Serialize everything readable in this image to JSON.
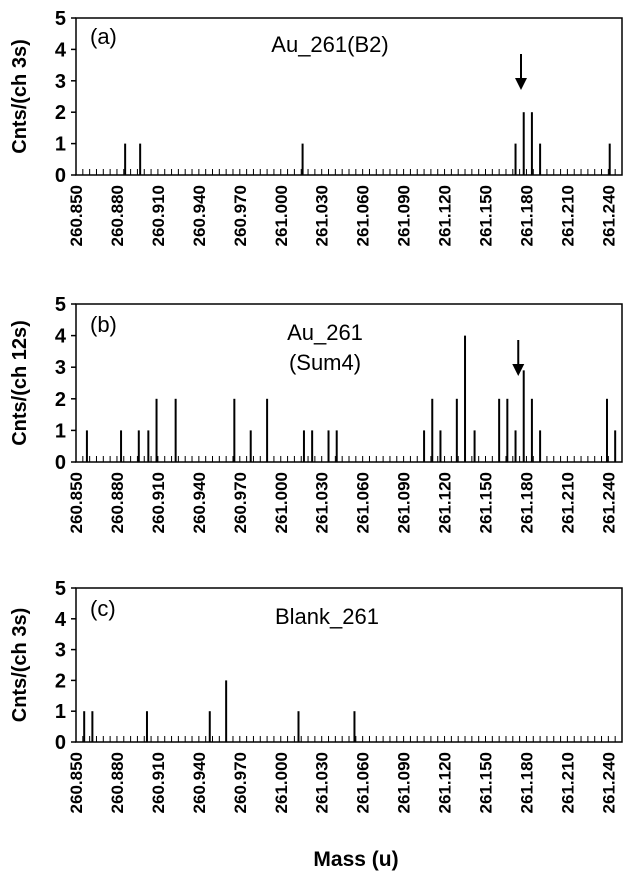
{
  "xlabel": "Mass (u)",
  "chart_data": [
    {
      "type": "bar",
      "panel_label": "(a)",
      "annotation": [
        "Au_261(B2)"
      ],
      "ylabel": "Cnts/(ch 3s)",
      "xlim": [
        260.85,
        261.25
      ],
      "ylim": [
        0,
        5
      ],
      "xticks": [
        "260.850",
        "260.880",
        "260.910",
        "260.940",
        "260.970",
        "261.000",
        "261.030",
        "261.060",
        "261.090",
        "261.120",
        "261.150",
        "261.180",
        "261.210",
        "261.240"
      ],
      "yticks": [
        "0",
        "1",
        "2",
        "3",
        "4",
        "5"
      ],
      "arrow_at": 261.176,
      "x": [
        260.886,
        260.897,
        261.016,
        261.172,
        261.178,
        261.184,
        261.19,
        261.241
      ],
      "values": [
        1,
        1,
        1,
        1,
        2,
        2,
        1,
        1
      ]
    },
    {
      "type": "bar",
      "panel_label": "(b)",
      "annotation": [
        "Au_261",
        "(Sum4)"
      ],
      "ylabel": "Cnts/(ch 12s)",
      "xlim": [
        260.85,
        261.25
      ],
      "ylim": [
        0,
        5
      ],
      "xticks": [
        "260.850",
        "260.880",
        "260.910",
        "260.940",
        "260.970",
        "261.000",
        "261.030",
        "261.060",
        "261.090",
        "261.120",
        "261.150",
        "261.180",
        "261.210",
        "261.240"
      ],
      "yticks": [
        "0",
        "1",
        "2",
        "3",
        "4",
        "5"
      ],
      "arrow_at": 261.174,
      "x": [
        260.858,
        260.883,
        260.896,
        260.903,
        260.909,
        260.923,
        260.966,
        260.978,
        260.99,
        261.017,
        261.023,
        261.035,
        261.041,
        261.105,
        261.111,
        261.117,
        261.129,
        261.135,
        261.142,
        261.16,
        261.166,
        261.172,
        261.178,
        261.184,
        261.19,
        261.239,
        261.245
      ],
      "values": [
        1,
        1,
        1,
        1,
        2,
        2,
        2,
        1,
        2,
        1,
        1,
        1,
        1,
        1,
        2,
        1,
        2,
        4,
        1,
        2,
        2,
        1,
        2.9,
        2,
        1,
        2,
        1
      ]
    },
    {
      "type": "bar",
      "panel_label": "(c)",
      "annotation": [
        "Blank_261"
      ],
      "ylabel": "Cnts/(ch 3s)",
      "xlim": [
        260.85,
        261.25
      ],
      "ylim": [
        0,
        5
      ],
      "xticks": [
        "260.850",
        "260.880",
        "260.910",
        "260.940",
        "260.970",
        "261.000",
        "261.030",
        "261.060",
        "261.090",
        "261.120",
        "261.150",
        "261.180",
        "261.210",
        "261.240"
      ],
      "yticks": [
        "0",
        "1",
        "2",
        "3",
        "4",
        "5"
      ],
      "x": [
        260.856,
        260.862,
        260.902,
        260.948,
        260.96,
        261.013,
        261.054
      ],
      "values": [
        1,
        1,
        1,
        1,
        2,
        1,
        1
      ]
    }
  ]
}
